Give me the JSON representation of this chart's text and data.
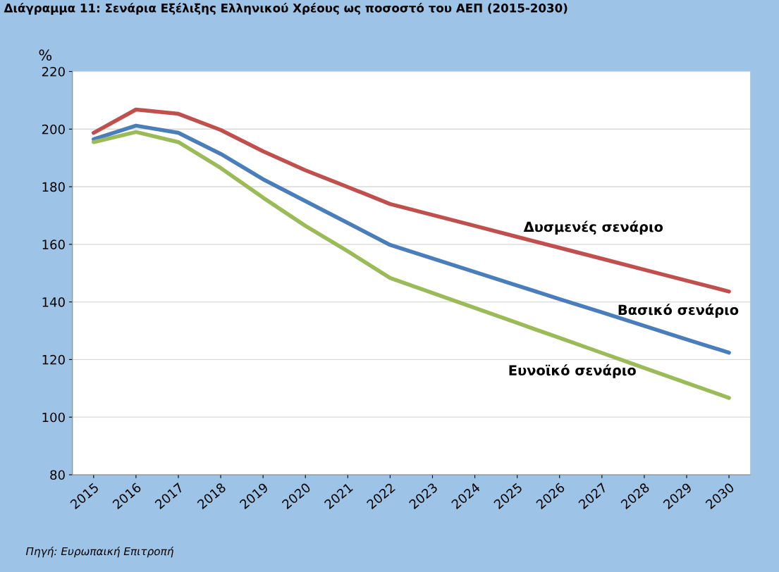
{
  "chart_data": {
    "type": "line",
    "title": "Διάγραμμα 11: Σενάρια Εξέλιξης Ελληνικού Χρέους ως ποσοστό του ΑΕΠ (2015-2030)",
    "ylabel": "%",
    "categories": [
      "2015",
      "2016",
      "2017",
      "2018",
      "2019",
      "2020",
      "2021",
      "2022",
      "2023",
      "2024",
      "2025",
      "2026",
      "2027",
      "2028",
      "2029",
      "2030"
    ],
    "series": [
      {
        "name": "Δυσμενές σενάριο",
        "color": "#c0504d",
        "values": [
          198.7,
          206.8,
          205.3,
          199.7,
          192.3,
          185.7,
          179.9,
          174.0,
          170.2,
          166.4,
          162.6,
          158.8,
          155.0,
          151.2,
          147.4,
          143.6
        ]
      },
      {
        "name": "Βασικό σενάριο",
        "color": "#4a7ebb",
        "values": [
          196.5,
          201.2,
          198.7,
          191.4,
          182.6,
          175.0,
          167.4,
          159.8,
          155.1,
          150.4,
          145.7,
          141.0,
          136.4,
          131.7,
          127.0,
          122.4
        ]
      },
      {
        "name": "Ευνοϊκό σενάριο",
        "color": "#9bbb59",
        "values": [
          195.5,
          199.0,
          195.5,
          186.5,
          176.2,
          166.4,
          157.6,
          148.3,
          143.1,
          137.9,
          132.7,
          127.5,
          122.3,
          117.1,
          111.9,
          106.7
        ]
      }
    ],
    "ylim": [
      80,
      220
    ],
    "yticks": [
      80,
      100,
      120,
      140,
      160,
      180,
      200,
      220
    ],
    "grid": "y",
    "legend": false,
    "annotations": [
      "Πηγή: Ευρωπαική Επιτροπή"
    ]
  }
}
